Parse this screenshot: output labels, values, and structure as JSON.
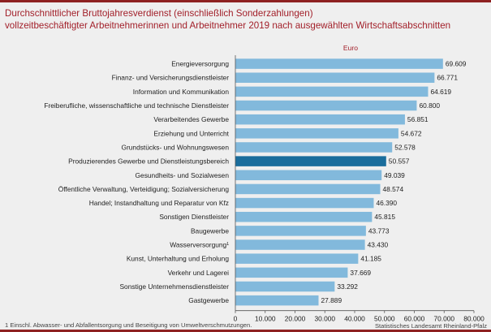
{
  "title_lines": [
    "Durchschnittlicher Bruttojahresverdienst (einschließlich Sonderzahlungen)",
    "vollzeitbeschäftigter Arbeitnehmerinnen und Arbeitnehmer 2019 nach ausgewählten Wirtschaftsabschnitten"
  ],
  "footnote": "1 Einschl. Abwasser- und Abfallentsorgung und Beseitigung von Umweltverschmutzungen.",
  "source": "Statistisches Landesamt Rheinland-Pfalz",
  "colors": {
    "bar": "#82b9dc",
    "highlight": "#1a6d9c",
    "title": "#a21f29",
    "background": "#efefef"
  },
  "chart_data": {
    "type": "bar",
    "orientation": "horizontal",
    "unit_label": "Euro",
    "highlight_category": "Produzierendes Gewerbe und Dienstleistungsbereich",
    "categories": [
      "Energieversorgung",
      "Finanz- und Versicherungsdienstleister",
      "Information und Kommunikation",
      "Freiberufliche, wissenschaftliche und technische Dienstleister",
      "Verarbeitendes Gewerbe",
      "Erziehung und Unterricht",
      "Grundstücks- und Wohnungswesen",
      "Produzierendes Gewerbe und Dienstleistungsbereich",
      "Gesundheits- und Sozialwesen",
      "Öffentliche Verwaltung, Verteidigung; Sozialversicherung",
      "Handel; Instandhaltung und Reparatur von Kfz",
      "Sonstigen Dienstleister",
      "Baugewerbe",
      "Wasserversorgung¹",
      "Kunst, Unterhaltung und Erholung",
      "Verkehr und Lagerei",
      "Sonstige Unternehmensdienstleister",
      "Gastgewerbe"
    ],
    "values": [
      69609,
      66771,
      64619,
      60800,
      56851,
      54672,
      52578,
      50557,
      49039,
      48574,
      46390,
      45815,
      43773,
      43430,
      41185,
      37669,
      33292,
      27889
    ],
    "value_labels": [
      "69.609",
      "66.771",
      "64.619",
      "60.800",
      "56.851",
      "54.672",
      "52.578",
      "50.557",
      "49.039",
      "48.574",
      "46.390",
      "45.815",
      "43.773",
      "43.430",
      "41.185",
      "37.669",
      "33.292",
      "27.889"
    ],
    "xlim": [
      0,
      80000
    ],
    "ticks": [
      0,
      10000,
      20000,
      30000,
      40000,
      50000,
      60000,
      70000,
      80000
    ],
    "tick_labels": [
      "0",
      "10.000",
      "20.000",
      "30.000",
      "40.000",
      "50.000",
      "60.000",
      "70.000",
      "80.000"
    ],
    "grid": false
  }
}
